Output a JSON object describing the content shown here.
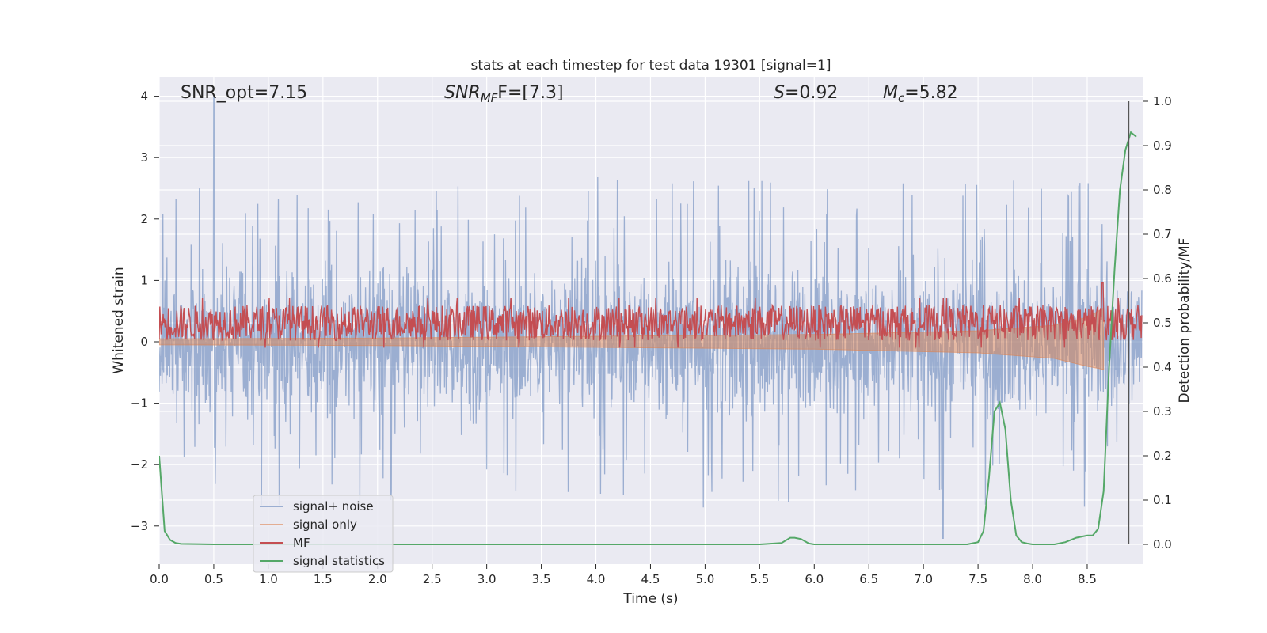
{
  "chart_data": {
    "type": "line",
    "title": "stats at each timestep for test data 19301 [signal=1]",
    "xlabel": "Time (s)",
    "ylabel": "Whitened strain",
    "ylabel_right": "Detection probability/MF",
    "xlim": [
      0.0,
      9.0
    ],
    "ylim": [
      -3.5,
      4.35
    ],
    "ylim_right": [
      -0.05,
      1.03
    ],
    "xticks": [
      "0.0",
      "0.5",
      "1.0",
      "1.5",
      "2.0",
      "2.5",
      "3.0",
      "3.5",
      "4.0",
      "4.5",
      "5.0",
      "5.5",
      "6.0",
      "6.5",
      "7.0",
      "7.5",
      "8.0",
      "8.5"
    ],
    "yticks_left": [
      "−3",
      "−2",
      "−1",
      "0",
      "1",
      "2",
      "3",
      "4"
    ],
    "yticks_right": [
      "0.0",
      "0.1",
      "0.2",
      "0.3",
      "0.4",
      "0.5",
      "0.6",
      "0.7",
      "0.8",
      "0.9",
      "1.0"
    ],
    "annotations": {
      "snr_opt": "SNR_opt=7.15",
      "snr_mf_base": "SNR",
      "snr_mf_sub": "MF",
      "snr_mf_tail": "F=[7.3]",
      "s_base": "S",
      "s_tail": "=0.92",
      "mc_base": "M",
      "mc_sub": "c",
      "mc_tail": "=5.82"
    },
    "grid": true,
    "legend_position": "lower-left",
    "colors": {
      "noise": "#4c72b0",
      "signal": "#dd8452",
      "mf": "#c44e52",
      "stat": "#55a868",
      "background": "#eaeaf2",
      "marker": "#555555"
    },
    "series": [
      {
        "name": "signal+ noise",
        "axis": "left",
        "envelope_upper": 2.0,
        "envelope_lower": -2.0,
        "peak_max": 4.0,
        "peak_min": -3.2
      },
      {
        "name": "signal only",
        "axis": "left",
        "x": [
          0.0,
          2.0,
          4.0,
          6.0,
          7.5,
          8.2,
          8.5,
          8.65
        ],
        "upper": [
          0.05,
          0.06,
          0.09,
          0.12,
          0.18,
          0.27,
          0.4,
          0.55
        ],
        "lower": [
          -0.05,
          -0.06,
          -0.09,
          -0.12,
          -0.18,
          -0.27,
          -0.4,
          -0.45
        ]
      },
      {
        "name": "MF",
        "axis": "right",
        "band": [
          0.46,
          0.54
        ],
        "spike": {
          "x": 8.64,
          "y": 0.59
        }
      },
      {
        "name": "signal statistics",
        "axis": "right",
        "x": [
          0.0,
          0.05,
          0.1,
          0.15,
          0.2,
          0.5,
          1.0,
          2.0,
          3.0,
          4.0,
          5.0,
          5.5,
          5.7,
          5.78,
          5.82,
          5.88,
          5.95,
          6.0,
          6.5,
          7.0,
          7.4,
          7.5,
          7.55,
          7.6,
          7.65,
          7.7,
          7.75,
          7.8,
          7.85,
          7.9,
          7.95,
          8.0,
          8.1,
          8.2,
          8.3,
          8.4,
          8.5,
          8.55,
          8.6,
          8.65,
          8.7,
          8.75,
          8.8,
          8.85,
          8.9,
          8.95
        ],
        "y": [
          0.2,
          0.03,
          0.01,
          0.003,
          0.001,
          0.0,
          0.0,
          0.0,
          0.0,
          0.0,
          0.0,
          0.0,
          0.003,
          0.015,
          0.015,
          0.012,
          0.002,
          0.0,
          0.0,
          0.0,
          0.0,
          0.005,
          0.03,
          0.15,
          0.3,
          0.32,
          0.26,
          0.1,
          0.02,
          0.005,
          0.002,
          0.0,
          0.0,
          0.0,
          0.005,
          0.015,
          0.02,
          0.02,
          0.035,
          0.12,
          0.4,
          0.62,
          0.8,
          0.89,
          0.93,
          0.92
        ]
      }
    ],
    "vertical_marker_x": 8.88
  }
}
